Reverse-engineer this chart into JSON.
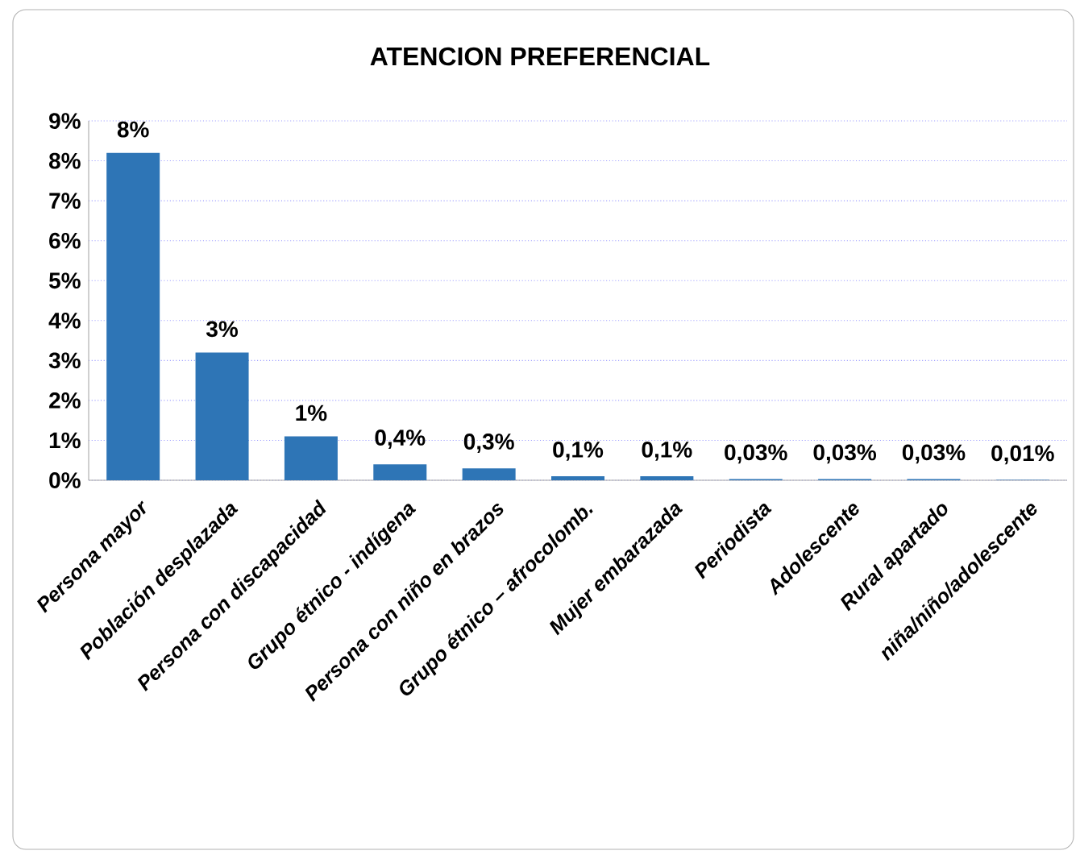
{
  "chart_data": {
    "type": "bar",
    "title": "ATENCION PREFERENCIAL",
    "categories": [
      "Persona mayor",
      "Población desplazada",
      "Persona con discapacidad",
      "Grupo étnico - indígena",
      "Persona con niño en brazos",
      "Grupo étnico – afrocolomb.",
      "Mujer embarazada",
      "Periodista",
      "Adolescente",
      "Rural apartado",
      "niña/niño/adolescente"
    ],
    "values": [
      8.2,
      3.2,
      1.1,
      0.4,
      0.3,
      0.1,
      0.1,
      0.03,
      0.03,
      0.03,
      0.01
    ],
    "value_labels": [
      "8%",
      "3%",
      "1%",
      "0,4%",
      "0,3%",
      "0,1%",
      "0,1%",
      "0,03%",
      "0,03%",
      "0,03%",
      "0,01%"
    ],
    "color": "#2e75b6",
    "ylim": [
      0,
      9
    ],
    "yticks": [
      {
        "value": 0,
        "label": "0%"
      },
      {
        "value": 1,
        "label": "1%"
      },
      {
        "value": 2,
        "label": "2%"
      },
      {
        "value": 3,
        "label": "3%"
      },
      {
        "value": 4,
        "label": "4%"
      },
      {
        "value": 5,
        "label": "5%"
      },
      {
        "value": 6,
        "label": "6%"
      },
      {
        "value": 7,
        "label": "7%"
      },
      {
        "value": 8,
        "label": "8%"
      },
      {
        "value": 9,
        "label": "9%"
      }
    ],
    "grid": "y"
  }
}
